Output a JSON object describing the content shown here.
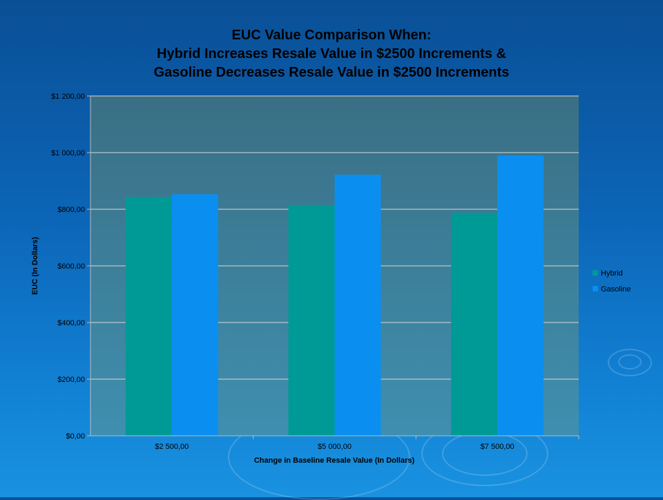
{
  "chart_data": {
    "type": "bar",
    "title_lines": [
      "EUC Value Comparison When:",
      "Hybrid Increases Resale Value in $2500 Increments &",
      "Gasoline Decreases Resale Value in $2500 Increments"
    ],
    "xlabel": "Change in Baseline Resale Value (In Dollars)",
    "ylabel": "EUC (In Dollars)",
    "categories": [
      "$2 500,00",
      "$5 000,00",
      "$7 500,00"
    ],
    "y_tick_labels": [
      "$0,00",
      "$200,00",
      "$400,00",
      "$600,00",
      "$800,00",
      "$1 000,00",
      "$1 200,00"
    ],
    "y_tick_values": [
      0,
      200,
      400,
      600,
      800,
      1000,
      1200
    ],
    "ylim": [
      0,
      1200
    ],
    "grid": true,
    "legend_position": "right",
    "series": [
      {
        "name": "Hybrid",
        "values": [
          843,
          815,
          787
        ],
        "color": "#009a96"
      },
      {
        "name": "Gasoline",
        "values": [
          853,
          922,
          990
        ],
        "color": "#0a8ff0"
      }
    ]
  }
}
